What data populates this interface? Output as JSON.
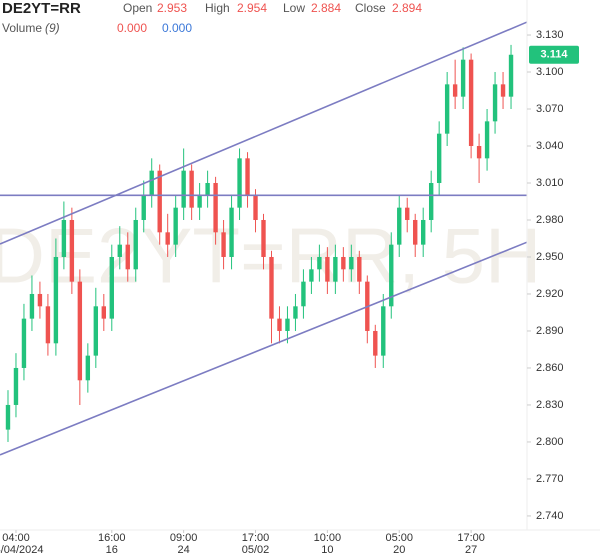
{
  "chart_data": {
    "type": "candlestick",
    "title": "DE2YT=RR",
    "watermark": "DE2YT=RR, 5H",
    "header": {
      "open_label": "Open",
      "open": 2.953,
      "high_label": "High",
      "high": 2.954,
      "low_label": "Low",
      "low": 2.884,
      "close_label": "Close",
      "close": 2.894,
      "volume_label": "Volume",
      "volume_period": "(9)",
      "volume_values": [
        "0.000",
        "0.000"
      ]
    },
    "up_color": "#22c27c",
    "down_color": "#ef5350",
    "open": [
      2.81,
      2.83,
      2.86,
      2.9,
      2.92,
      2.91,
      2.88,
      2.95,
      2.98,
      2.93,
      2.85,
      2.87,
      2.91,
      2.9,
      2.95,
      2.96,
      2.94,
      2.98,
      3.0,
      3.02,
      2.97,
      2.96,
      2.99,
      3.02,
      2.99,
      3.0,
      3.01,
      2.97,
      2.95,
      2.99,
      3.03,
      3.0,
      2.98,
      2.95,
      2.9,
      2.89,
      2.9,
      2.91,
      2.93,
      2.94,
      2.95,
      2.93,
      2.95,
      2.94,
      2.95,
      2.93,
      2.89,
      2.87,
      2.91,
      2.96,
      2.99,
      2.98,
      2.96,
      2.98,
      3.01,
      3.05,
      3.09,
      3.08,
      3.11,
      3.04,
      3.03,
      3.06,
      3.09,
      3.08
    ],
    "high": [
      2.842,
      2.872,
      2.912,
      2.935,
      2.93,
      2.92,
      2.965,
      2.995,
      2.99,
      2.94,
      2.88,
      2.925,
      2.92,
      2.96,
      2.975,
      2.97,
      2.99,
      3.012,
      3.03,
      3.025,
      2.985,
      3.0,
      3.038,
      3.025,
      3.01,
      3.02,
      3.015,
      2.98,
      3.0,
      3.038,
      3.035,
      3.005,
      2.985,
      2.955,
      2.91,
      2.91,
      2.92,
      2.94,
      2.95,
      2.96,
      2.958,
      2.96,
      2.958,
      2.96,
      2.955,
      2.935,
      2.895,
      2.92,
      2.97,
      3.0,
      2.998,
      2.985,
      2.99,
      3.02,
      3.06,
      3.1,
      3.11,
      3.12,
      3.115,
      3.05,
      3.07,
      3.1,
      3.1,
      3.122
    ],
    "low": [
      2.8,
      2.82,
      2.85,
      2.89,
      2.9,
      2.87,
      2.87,
      2.94,
      2.92,
      2.83,
      2.84,
      2.86,
      2.89,
      2.89,
      2.94,
      2.93,
      2.93,
      2.97,
      2.99,
      2.96,
      2.95,
      2.95,
      2.98,
      2.98,
      2.98,
      2.99,
      2.96,
      2.94,
      2.94,
      2.98,
      2.99,
      2.97,
      2.94,
      2.88,
      2.88,
      2.88,
      2.89,
      2.9,
      2.92,
      2.93,
      2.92,
      2.92,
      2.93,
      2.93,
      2.92,
      2.88,
      2.86,
      2.86,
      2.9,
      2.95,
      2.97,
      2.95,
      2.95,
      2.97,
      3.0,
      3.04,
      3.07,
      3.07,
      3.03,
      3.01,
      3.02,
      3.05,
      3.07,
      3.07
    ],
    "close": [
      2.83,
      2.86,
      2.9,
      2.92,
      2.91,
      2.88,
      2.95,
      2.98,
      2.93,
      2.85,
      2.87,
      2.91,
      2.9,
      2.95,
      2.96,
      2.94,
      2.98,
      3.0,
      3.02,
      2.97,
      2.96,
      2.99,
      3.02,
      2.99,
      3.0,
      3.01,
      2.97,
      2.95,
      2.99,
      3.03,
      3.0,
      2.98,
      2.95,
      2.9,
      2.89,
      2.9,
      2.91,
      2.93,
      2.94,
      2.95,
      2.93,
      2.95,
      2.94,
      2.95,
      2.93,
      2.89,
      2.87,
      2.91,
      2.96,
      2.99,
      2.98,
      2.96,
      2.98,
      3.01,
      3.05,
      3.09,
      3.08,
      3.11,
      3.04,
      3.03,
      3.06,
      3.09,
      3.08,
      3.114
    ],
    "xlim": [
      -1,
      65
    ],
    "xticks": [
      {
        "value": 1,
        "label": "04:00",
        "sublabel": "04/04/2024"
      },
      {
        "value": 13,
        "label": "16:00",
        "sublabel": "16"
      },
      {
        "value": 22,
        "label": "09:00",
        "sublabel": "24"
      },
      {
        "value": 31,
        "label": "17:00",
        "sublabel": "05/02"
      },
      {
        "value": 40,
        "label": "10:00",
        "sublabel": "10"
      },
      {
        "value": 49,
        "label": "05:00",
        "sublabel": "20"
      },
      {
        "value": 58,
        "label": "17:00",
        "sublabel": "27"
      }
    ],
    "ylim": [
      2.7286,
      3.1584
    ],
    "yticks": [
      {
        "value": 3.13,
        "label": "3.130"
      },
      {
        "value": 3.1,
        "label": "3.100"
      },
      {
        "value": 3.07,
        "label": "3.070"
      },
      {
        "value": 3.04,
        "label": "3.040"
      },
      {
        "value": 3.01,
        "label": "3.010"
      },
      {
        "value": 2.98,
        "label": "2.980"
      },
      {
        "value": 2.95,
        "label": "2.950"
      },
      {
        "value": 2.92,
        "label": "2.920"
      },
      {
        "value": 2.89,
        "label": "2.890"
      },
      {
        "value": 2.86,
        "label": "2.860"
      },
      {
        "value": 2.83,
        "label": "2.830"
      },
      {
        "value": 2.8,
        "label": "2.800"
      },
      {
        "value": 2.77,
        "label": "2.770"
      },
      {
        "value": 2.74,
        "label": "2.740"
      }
    ],
    "trend_lines": [
      {
        "x": [
          -1,
          65
        ],
        "y": [
          2.9605,
          3.1405
        ]
      },
      {
        "x": [
          -1,
          65
        ],
        "y": [
          2.7895,
          2.962
        ]
      },
      {
        "x": [
          -1,
          65
        ],
        "y": [
          3.0,
          3.0
        ]
      }
    ],
    "trend_color": "#7c7cc2"
  }
}
